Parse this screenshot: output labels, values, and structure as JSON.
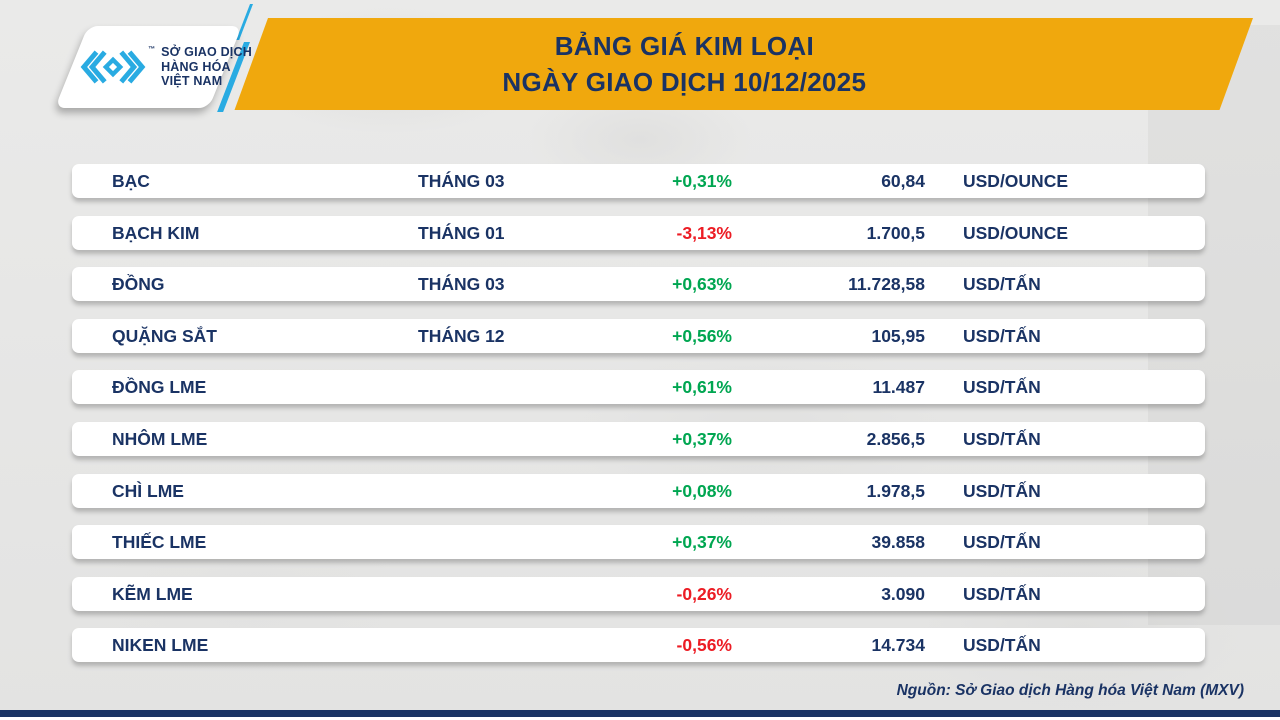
{
  "colors": {
    "navy": "#1A3364",
    "yellow": "#F0A80D",
    "green": "#00A651",
    "red": "#EC1C24",
    "cyan": "#29ABE2"
  },
  "header": {
    "title_line1": "BẢNG GIÁ KIM LOẠI",
    "title_line2": "NGÀY GIAO DỊCH 10/12/2025",
    "logo": {
      "icon": "mxv-chevron-mark-icon",
      "trademark": "™",
      "line1": "SỞ GIAO DỊCH",
      "line2": "HÀNG HÓA",
      "line3": "VIỆT NAM"
    }
  },
  "table": {
    "rows": [
      {
        "name": "BẠC",
        "month": "THÁNG 03",
        "change": "+0,31%",
        "price": "60,84",
        "unit": "USD/OUNCE"
      },
      {
        "name": "BẠCH KIM",
        "month": "THÁNG 01",
        "change": "-3,13%",
        "price": "1.700,5",
        "unit": "USD/OUNCE"
      },
      {
        "name": "ĐỒNG",
        "month": "THÁNG 03",
        "change": "+0,63%",
        "price": "11.728,58",
        "unit": "USD/TẤN"
      },
      {
        "name": "QUẶNG SẮT",
        "month": "THÁNG 12",
        "change": "+0,56%",
        "price": "105,95",
        "unit": "USD/TẤN"
      },
      {
        "name": "ĐỒNG LME",
        "month": "",
        "change": "+0,61%",
        "price": "11.487",
        "unit": "USD/TẤN"
      },
      {
        "name": "NHÔM LME",
        "month": "",
        "change": "+0,37%",
        "price": "2.856,5",
        "unit": "USD/TẤN"
      },
      {
        "name": "CHÌ LME",
        "month": "",
        "change": "+0,08%",
        "price": "1.978,5",
        "unit": "USD/TẤN"
      },
      {
        "name": "THIẾC LME",
        "month": "",
        "change": "+0,37%",
        "price": "39.858",
        "unit": "USD/TẤN"
      },
      {
        "name": "KẼM LME",
        "month": "",
        "change": "-0,26%",
        "price": "3.090",
        "unit": "USD/TẤN"
      },
      {
        "name": "NIKEN LME",
        "month": "",
        "change": "-0,56%",
        "price": "14.734",
        "unit": "USD/TẤN"
      }
    ]
  },
  "footer": {
    "source": "Nguồn: Sở Giao dịch Hàng hóa Việt Nam (MXV)"
  },
  "chart_data": {
    "type": "table",
    "title": "BẢNG GIÁ KIM LOẠI — NGÀY GIAO DỊCH 10/12/2025",
    "rows": [
      [
        "BẠC",
        "THÁNG 03",
        "+0,31%",
        "60,84",
        "USD/OUNCE"
      ],
      [
        "BẠCH KIM",
        "THÁNG 01",
        "-3,13%",
        "1.700,5",
        "USD/OUNCE"
      ],
      [
        "ĐỒNG",
        "THÁNG 03",
        "+0,63%",
        "11.728,58",
        "USD/TẤN"
      ],
      [
        "QUẶNG SẮT",
        "THÁNG 12",
        "+0,56%",
        "105,95",
        "USD/TẤN"
      ],
      [
        "ĐỒNG LME",
        "",
        "+0,61%",
        "11.487",
        "USD/TẤN"
      ],
      [
        "NHÔM LME",
        "",
        "+0,37%",
        "2.856,5",
        "USD/TẤN"
      ],
      [
        "CHÌ LME",
        "",
        "+0,08%",
        "1.978,5",
        "USD/TẤN"
      ],
      [
        "THIẾC LME",
        "",
        "+0,37%",
        "39.858",
        "USD/TẤN"
      ],
      [
        "KẼM LME",
        "",
        "-0,26%",
        "3.090",
        "USD/TẤN"
      ],
      [
        "NIKEN LME",
        "",
        "-0,56%",
        "14.734",
        "USD/TẤN"
      ]
    ],
    "source": "Nguồn: Sở Giao dịch Hàng hóa Việt Nam (MXV)"
  }
}
